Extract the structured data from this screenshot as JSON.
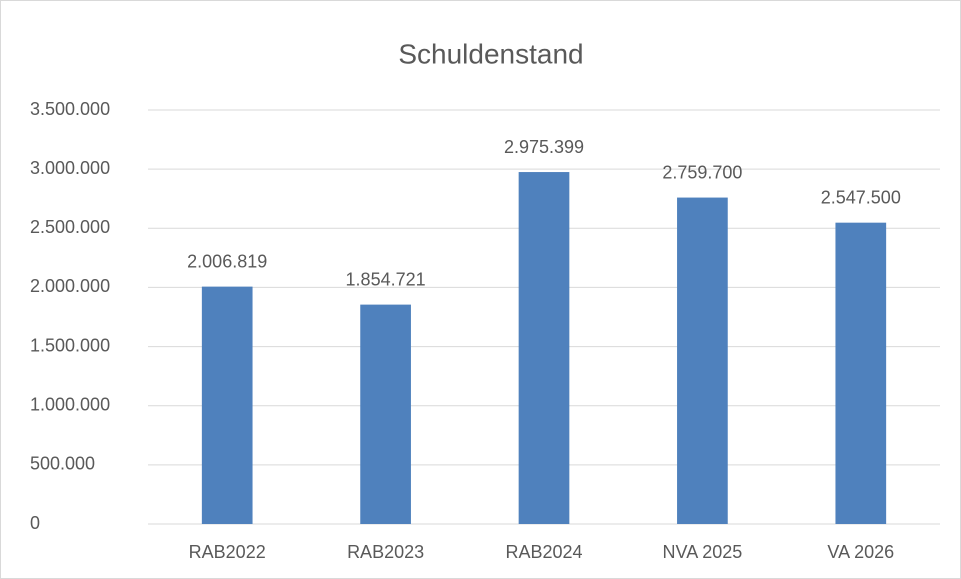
{
  "chart_data": {
    "type": "bar",
    "title": "Schuldenstand",
    "categories": [
      "RAB2022",
      "RAB2023",
      "RAB2024",
      "NVA 2025",
      "VA 2026"
    ],
    "values": [
      2006819,
      1854721,
      2975399,
      2759700,
      2547500
    ],
    "value_labels": [
      "2.006.819",
      "1.854.721",
      "2.975.399",
      "2.759.700",
      "2.547.500"
    ],
    "color": "#4f81bd",
    "ylim": [
      0,
      3500000
    ],
    "yticks": [
      0,
      {
        "value": 500000,
        "label": "500.000"
      },
      {
        "value": 1000000,
        "label": "1.000.000"
      },
      {
        "value": 1500000,
        "label": "1.500.000"
      },
      {
        "value": 2000000,
        "label": "2.000.000"
      },
      {
        "value": 2500000,
        "label": "2.500.000"
      },
      {
        "value": 3000000,
        "label": "3.000.000"
      },
      {
        "value": 3500000,
        "label": "3.500.000"
      }
    ],
    "grid": true
  }
}
